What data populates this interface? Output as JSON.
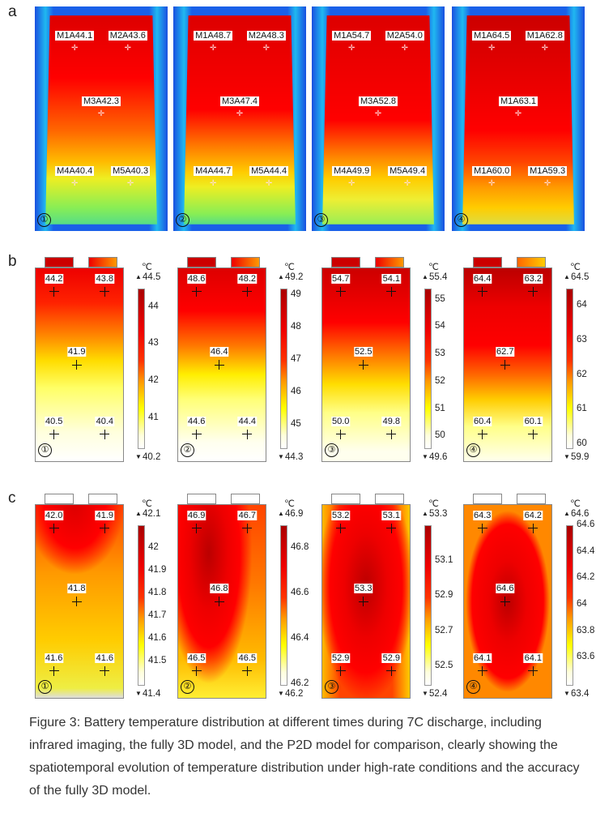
{
  "panel_labels": [
    "a",
    "b",
    "c"
  ],
  "unit": "℃",
  "row_a": [
    {
      "num": "1",
      "tags": [
        "M1A44.1",
        "M2A43.6",
        "M3A42.3",
        "M4A40.4",
        "M5A40.3"
      ]
    },
    {
      "num": "2",
      "tags": [
        "M1A48.7",
        "M2A48.3",
        "M3A47.4",
        "M4A44.7",
        "M5A44.4"
      ]
    },
    {
      "num": "3",
      "tags": [
        "M1A54.7",
        "M2A54.0",
        "M3A52.8",
        "M4A49.9",
        "M5A49.4"
      ]
    },
    {
      "num": "4",
      "tags": [
        "M1A64.5",
        "M1A62.8",
        "M1A63.1",
        "M1A60.0",
        "M1A59.3"
      ]
    }
  ],
  "row_b": [
    {
      "num": "1",
      "points": [
        "44.2",
        "43.8",
        "41.9",
        "40.5",
        "40.4"
      ],
      "max": "44.5",
      "min": "40.2",
      "ticks": [
        "44",
        "43",
        "42",
        "41"
      ]
    },
    {
      "num": "2",
      "points": [
        "48.6",
        "48.2",
        "46.4",
        "44.6",
        "44.4"
      ],
      "max": "49.2",
      "min": "44.3",
      "ticks": [
        "49",
        "48",
        "47",
        "46",
        "45"
      ]
    },
    {
      "num": "3",
      "points": [
        "54.7",
        "54.1",
        "52.5",
        "50.0",
        "49.8"
      ],
      "max": "55.4",
      "min": "49.6",
      "ticks": [
        "55",
        "54",
        "53",
        "52",
        "51",
        "50"
      ]
    },
    {
      "num": "4",
      "points": [
        "64.4",
        "63.2",
        "62.7",
        "60.4",
        "60.1"
      ],
      "max": "64.5",
      "min": "59.9",
      "ticks": [
        "64",
        "63",
        "62",
        "61",
        "60"
      ]
    }
  ],
  "row_c": [
    {
      "num": "1",
      "points": [
        "42.0",
        "41.9",
        "41.8",
        "41.6",
        "41.6"
      ],
      "max": "42.1",
      "min": "41.4",
      "ticks": [
        "42",
        "41.9",
        "41.8",
        "41.7",
        "41.6",
        "41.5"
      ]
    },
    {
      "num": "2",
      "points": [
        "46.9",
        "46.7",
        "46.8",
        "46.5",
        "46.5"
      ],
      "max": "46.9",
      "min": "46.2",
      "ticks": [
        "46.8",
        "46.6",
        "46.4",
        "46.2"
      ]
    },
    {
      "num": "3",
      "points": [
        "53.2",
        "53.1",
        "53.3",
        "52.9",
        "52.9"
      ],
      "max": "53.3",
      "min": "52.4",
      "ticks": [
        "53.1",
        "52.9",
        "52.7",
        "52.5"
      ]
    },
    {
      "num": "4",
      "points": [
        "64.3",
        "64.2",
        "64.6",
        "64.1",
        "64.1"
      ],
      "max": "64.6",
      "min": "63.4",
      "ticks": [
        "64.6",
        "64.4",
        "64.2",
        "64",
        "63.8",
        "63.6"
      ]
    }
  ],
  "caption": "Figure 3: Battery temperature distribution at different times during 7C discharge, including infrared imaging, the fully 3D model, and the P2D model for comparison, clearly showing the spatiotemporal evolution of temperature distribution under high-rate conditions and the accuracy of the fully 3D model.",
  "circled_numbers": [
    "①",
    "②",
    "③",
    "④"
  ]
}
